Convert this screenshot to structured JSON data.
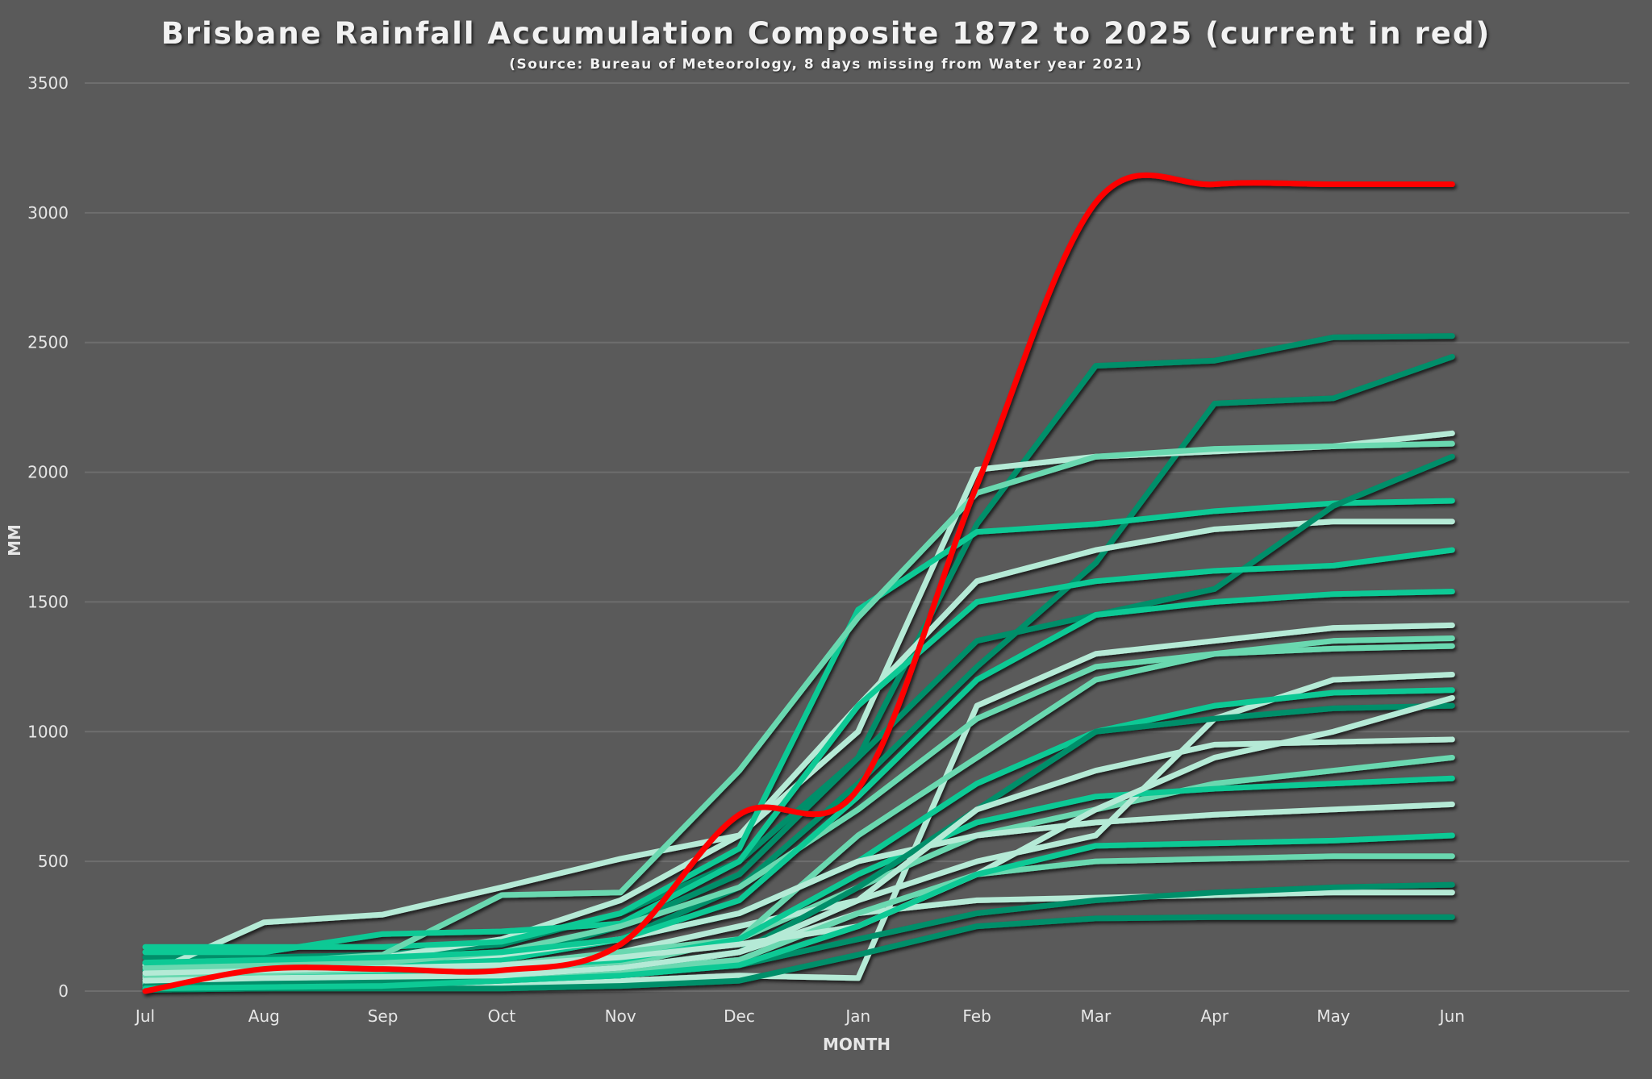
{
  "chart_data": {
    "type": "line",
    "title": "Brisbane Rainfall Accumulation Composite 1872 to 2025 (current in red)",
    "subtitle": "(Source: Bureau of Meteorology, 8 days missing from Water year 2021)",
    "xlabel": "MONTH",
    "ylabel": "MM",
    "categories": [
      "Jul",
      "Aug",
      "Sep",
      "Oct",
      "Nov",
      "Dec",
      "Jan",
      "Feb",
      "Mar",
      "Apr",
      "May",
      "Jun"
    ],
    "yticks": [
      "0",
      "500",
      "1000",
      "1500",
      "2000",
      "2500",
      "3000",
      "3500"
    ],
    "ylim": [
      0,
      3500
    ],
    "grid": "horizontal",
    "legend": "none",
    "colors": {
      "background": "#5a5a5a",
      "current": "#ff0000",
      "dark": "#068f6a",
      "mid": "#0fc995",
      "light": "#6ad8b0",
      "pale": "#b5ead6",
      "grid": "#6e6e6e"
    },
    "current_series": {
      "values": [
        0,
        85,
        85,
        80,
        180,
        680,
        780,
        1950,
        3040,
        3110,
        3110,
        3110
      ],
      "color": "#ff0000"
    },
    "historical_series": [
      {
        "shade": "dark",
        "values": [
          130,
          130,
          140,
          180,
          300,
          500,
          900,
          1800,
          2410,
          2430,
          2520,
          2525
        ]
      },
      {
        "shade": "dark",
        "values": [
          60,
          70,
          90,
          120,
          200,
          400,
          800,
          1250,
          1650,
          2265,
          2285,
          2445
        ]
      },
      {
        "shade": "pale",
        "values": [
          100,
          110,
          130,
          200,
          350,
          600,
          1000,
          2010,
          2060,
          2080,
          2100,
          2150
        ]
      },
      {
        "shade": "pale",
        "values": [
          60,
          265,
          295,
          400,
          510,
          600,
          1100,
          1580,
          1700,
          1780,
          1810,
          1810
        ]
      },
      {
        "shade": "mid",
        "values": [
          170,
          170,
          170,
          190,
          300,
          550,
          1470,
          1770,
          1800,
          1850,
          1880,
          1890
        ]
      },
      {
        "shade": "light",
        "values": [
          100,
          110,
          140,
          370,
          380,
          850,
          1440,
          1920,
          2060,
          2090,
          2100,
          2110
        ]
      },
      {
        "shade": "dark",
        "values": [
          40,
          50,
          70,
          120,
          250,
          450,
          900,
          1350,
          1450,
          1550,
          1870,
          2060
        ]
      },
      {
        "shade": "mid",
        "values": [
          150,
          150,
          220,
          230,
          260,
          500,
          1100,
          1500,
          1580,
          1620,
          1640,
          1700
        ]
      },
      {
        "shade": "pale",
        "values": [
          20,
          20,
          20,
          30,
          40,
          60,
          50,
          1100,
          1300,
          1350,
          1400,
          1410
        ]
      },
      {
        "shade": "dark",
        "values": [
          10,
          10,
          10,
          10,
          20,
          40,
          140,
          250,
          280,
          285,
          285,
          285
        ]
      },
      {
        "shade": "light",
        "values": [
          30,
          40,
          50,
          80,
          100,
          200,
          400,
          600,
          700,
          800,
          850,
          900
        ]
      },
      {
        "shade": "pale",
        "values": [
          50,
          60,
          60,
          80,
          150,
          250,
          350,
          500,
          600,
          1050,
          1200,
          1220
        ]
      },
      {
        "shade": "mid",
        "values": [
          80,
          90,
          100,
          120,
          200,
          300,
          500,
          800,
          1000,
          1100,
          1150,
          1160
        ]
      },
      {
        "shade": "pale",
        "values": [
          20,
          25,
          30,
          50,
          80,
          150,
          300,
          350,
          360,
          370,
          380,
          380
        ]
      },
      {
        "shade": "dark",
        "values": [
          5,
          10,
          20,
          40,
          60,
          100,
          200,
          300,
          350,
          380,
          400,
          410
        ]
      },
      {
        "shade": "light",
        "values": [
          60,
          70,
          80,
          100,
          150,
          200,
          600,
          900,
          1200,
          1300,
          1350,
          1360
        ]
      },
      {
        "shade": "mid",
        "values": [
          40,
          50,
          60,
          90,
          120,
          200,
          450,
          650,
          750,
          780,
          800,
          820
        ]
      },
      {
        "shade": "pale",
        "values": [
          100,
          110,
          120,
          140,
          200,
          300,
          500,
          600,
          650,
          680,
          700,
          720
        ]
      },
      {
        "shade": "light",
        "values": [
          30,
          40,
          50,
          60,
          80,
          120,
          300,
          450,
          500,
          510,
          520,
          520
        ]
      },
      {
        "shade": "dark",
        "values": [
          20,
          30,
          40,
          60,
          90,
          150,
          400,
          700,
          1000,
          1050,
          1090,
          1100
        ]
      },
      {
        "shade": "pale",
        "values": [
          70,
          80,
          90,
          100,
          130,
          180,
          250,
          450,
          700,
          900,
          1000,
          1130
        ]
      },
      {
        "shade": "mid",
        "values": [
          10,
          15,
          20,
          40,
          60,
          100,
          250,
          450,
          560,
          570,
          580,
          600
        ]
      },
      {
        "shade": "light",
        "values": [
          90,
          100,
          110,
          150,
          250,
          400,
          700,
          1050,
          1250,
          1300,
          1320,
          1330
        ]
      },
      {
        "shade": "pale",
        "values": [
          40,
          50,
          55,
          60,
          90,
          150,
          350,
          700,
          850,
          950,
          960,
          970
        ]
      },
      {
        "shade": "mid",
        "values": [
          110,
          120,
          130,
          150,
          200,
          350,
          750,
          1200,
          1450,
          1500,
          1530,
          1540
        ]
      }
    ]
  }
}
